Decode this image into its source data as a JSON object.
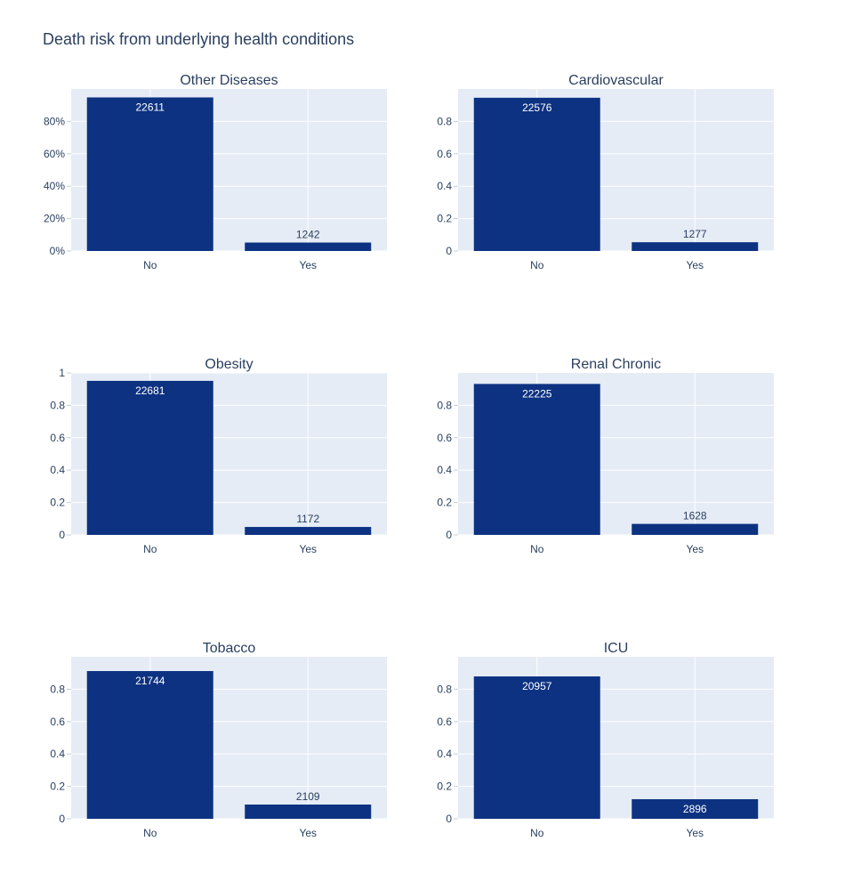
{
  "figure_title": "Death risk from underlying health conditions",
  "colors": {
    "bar": "#0d3282",
    "plot_bg": "#e5ecf6",
    "grid": "#ffffff",
    "text": "#2a3f5f"
  },
  "chart_data": [
    {
      "type": "bar",
      "title": "Other Diseases",
      "categories": [
        "No",
        "Yes"
      ],
      "values": [
        0.948,
        0.052
      ],
      "labels": [
        "22611",
        "1242"
      ],
      "ylim": [
        0,
        1
      ],
      "yticks": [
        0,
        0.2,
        0.4,
        0.6,
        0.8
      ],
      "ytick_labels": [
        "0%",
        "20%",
        "40%",
        "60%",
        "80%"
      ],
      "grid": true
    },
    {
      "type": "bar",
      "title": "Cardiovascular",
      "categories": [
        "No",
        "Yes"
      ],
      "values": [
        0.946,
        0.054
      ],
      "labels": [
        "22576",
        "1277"
      ],
      "ylim": [
        0,
        1
      ],
      "yticks": [
        0,
        0.2,
        0.4,
        0.6,
        0.8
      ],
      "ytick_labels": [
        "0",
        "0.2",
        "0.4",
        "0.6",
        "0.8"
      ],
      "grid": true
    },
    {
      "type": "bar",
      "title": "Obesity",
      "categories": [
        "No",
        "Yes"
      ],
      "values": [
        0.951,
        0.049
      ],
      "labels": [
        "22681",
        "1172"
      ],
      "ylim": [
        0,
        1
      ],
      "yticks": [
        0,
        0.2,
        0.4,
        0.6,
        0.8,
        1
      ],
      "ytick_labels": [
        "0",
        "0.2",
        "0.4",
        "0.6",
        "0.8",
        "1"
      ],
      "grid": true
    },
    {
      "type": "bar",
      "title": "Renal Chronic",
      "categories": [
        "No",
        "Yes"
      ],
      "values": [
        0.932,
        0.068
      ],
      "labels": [
        "22225",
        "1628"
      ],
      "ylim": [
        0,
        1
      ],
      "yticks": [
        0,
        0.2,
        0.4,
        0.6,
        0.8
      ],
      "ytick_labels": [
        "0",
        "0.2",
        "0.4",
        "0.6",
        "0.8"
      ],
      "grid": true
    },
    {
      "type": "bar",
      "title": "Tobacco",
      "categories": [
        "No",
        "Yes"
      ],
      "values": [
        0.912,
        0.088
      ],
      "labels": [
        "21744",
        "2109"
      ],
      "ylim": [
        0,
        1
      ],
      "yticks": [
        0,
        0.2,
        0.4,
        0.6,
        0.8
      ],
      "ytick_labels": [
        "0",
        "0.2",
        "0.4",
        "0.6",
        "0.8"
      ],
      "grid": true
    },
    {
      "type": "bar",
      "title": "ICU",
      "categories": [
        "No",
        "Yes"
      ],
      "values": [
        0.879,
        0.121
      ],
      "labels": [
        "20957",
        "2896"
      ],
      "ylim": [
        0,
        1
      ],
      "yticks": [
        0,
        0.2,
        0.4,
        0.6,
        0.8
      ],
      "ytick_labels": [
        "0",
        "0.2",
        "0.4",
        "0.6",
        "0.8"
      ],
      "grid": true
    }
  ]
}
